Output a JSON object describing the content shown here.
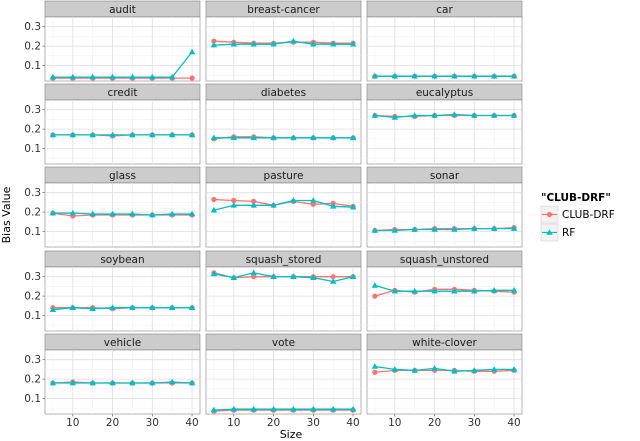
{
  "chart_data": {
    "type": "line",
    "xlabel": "Size",
    "ylabel": "Bias Value",
    "xlim": [
      3,
      42
    ],
    "ylim": [
      0.02,
      0.35
    ],
    "x_ticks": [
      "10",
      "20",
      "30",
      "40"
    ],
    "y_ticks": [
      "0.1",
      "0.2",
      "0.3"
    ],
    "x_tick_values": [
      10,
      20,
      30,
      40
    ],
    "y_tick_values": [
      0.1,
      0.2,
      0.3
    ],
    "grid": true,
    "facet_cols": 3,
    "legend": {
      "title": "\"CLUB-DRF\"",
      "placement": "right",
      "entries": [
        {
          "name": "CLUB-DRF",
          "color": "#F8766D",
          "marker": "circle"
        },
        {
          "name": "RF",
          "color": "#00BFC4",
          "marker": "triangle"
        }
      ]
    },
    "x": [
      5,
      10,
      15,
      20,
      25,
      30,
      35,
      40
    ],
    "panels": [
      {
        "title": "audit",
        "series": [
          {
            "name": "CLUB-DRF",
            "values": [
              0.035,
              0.035,
              0.035,
              0.035,
              0.035,
              0.035,
              0.035,
              0.035
            ]
          },
          {
            "name": "RF",
            "values": [
              0.04,
              0.04,
              0.04,
              0.04,
              0.04,
              0.04,
              0.04,
              0.17
            ]
          }
        ]
      },
      {
        "title": "breast-cancer",
        "series": [
          {
            "name": "CLUB-DRF",
            "values": [
              0.225,
              0.22,
              0.215,
              0.215,
              0.22,
              0.22,
              0.215,
              0.215
            ]
          },
          {
            "name": "RF",
            "values": [
              0.205,
              0.21,
              0.21,
              0.21,
              0.225,
              0.21,
              0.21,
              0.21
            ]
          }
        ]
      },
      {
        "title": "car",
        "series": [
          {
            "name": "CLUB-DRF",
            "values": [
              0.045,
              0.045,
              0.045,
              0.045,
              0.045,
              0.045,
              0.045,
              0.045
            ]
          },
          {
            "name": "RF",
            "values": [
              0.045,
              0.045,
              0.045,
              0.045,
              0.045,
              0.045,
              0.045,
              0.045
            ]
          }
        ]
      },
      {
        "title": "credit",
        "series": [
          {
            "name": "CLUB-DRF",
            "values": [
              0.17,
              0.17,
              0.17,
              0.165,
              0.17,
              0.17,
              0.17,
              0.17
            ]
          },
          {
            "name": "RF",
            "values": [
              0.17,
              0.17,
              0.17,
              0.17,
              0.17,
              0.17,
              0.17,
              0.17
            ]
          }
        ]
      },
      {
        "title": "diabetes",
        "series": [
          {
            "name": "CLUB-DRF",
            "values": [
              0.15,
              0.16,
              0.16,
              0.155,
              0.155,
              0.155,
              0.155,
              0.155
            ]
          },
          {
            "name": "RF",
            "values": [
              0.155,
              0.155,
              0.155,
              0.155,
              0.155,
              0.155,
              0.155,
              0.155
            ]
          }
        ]
      },
      {
        "title": "eucalyptus",
        "series": [
          {
            "name": "CLUB-DRF",
            "values": [
              0.27,
              0.265,
              0.265,
              0.27,
              0.27,
              0.27,
              0.27,
              0.27
            ]
          },
          {
            "name": "RF",
            "values": [
              0.27,
              0.26,
              0.27,
              0.27,
              0.275,
              0.27,
              0.27,
              0.27
            ]
          }
        ]
      },
      {
        "title": "glass",
        "series": [
          {
            "name": "CLUB-DRF",
            "values": [
              0.195,
              0.18,
              0.185,
              0.185,
              0.185,
              0.185,
              0.185,
              0.185
            ]
          },
          {
            "name": "RF",
            "values": [
              0.195,
              0.195,
              0.19,
              0.19,
              0.19,
              0.185,
              0.19,
              0.19
            ]
          }
        ]
      },
      {
        "title": "pasture",
        "series": [
          {
            "name": "CLUB-DRF",
            "values": [
              0.265,
              0.26,
              0.255,
              0.235,
              0.255,
              0.24,
              0.245,
              0.23
            ]
          },
          {
            "name": "RF",
            "values": [
              0.21,
              0.235,
              0.235,
              0.235,
              0.26,
              0.26,
              0.23,
              0.225
            ]
          }
        ]
      },
      {
        "title": "sonar",
        "series": [
          {
            "name": "CLUB-DRF",
            "values": [
              0.105,
              0.11,
              0.11,
              0.115,
              0.115,
              0.115,
              0.115,
              0.12
            ]
          },
          {
            "name": "RF",
            "values": [
              0.105,
              0.105,
              0.11,
              0.11,
              0.11,
              0.115,
              0.115,
              0.115
            ]
          }
        ]
      },
      {
        "title": "soybean",
        "series": [
          {
            "name": "CLUB-DRF",
            "values": [
              0.14,
              0.14,
              0.14,
              0.135,
              0.14,
              0.14,
              0.14,
              0.14
            ]
          },
          {
            "name": "RF",
            "values": [
              0.13,
              0.14,
              0.135,
              0.14,
              0.14,
              0.14,
              0.14,
              0.14
            ]
          }
        ]
      },
      {
        "title": "squash_stored",
        "series": [
          {
            "name": "CLUB-DRF",
            "values": [
              0.32,
              0.295,
              0.3,
              0.3,
              0.3,
              0.3,
              0.3,
              0.3
            ]
          },
          {
            "name": "RF",
            "values": [
              0.315,
              0.295,
              0.32,
              0.3,
              0.3,
              0.295,
              0.275,
              0.3
            ]
          }
        ]
      },
      {
        "title": "squash_unstored",
        "series": [
          {
            "name": "CLUB-DRF",
            "values": [
              0.2,
              0.23,
              0.22,
              0.235,
              0.235,
              0.23,
              0.225,
              0.22
            ]
          },
          {
            "name": "RF",
            "values": [
              0.255,
              0.225,
              0.225,
              0.225,
              0.225,
              0.225,
              0.23,
              0.23
            ]
          }
        ]
      },
      {
        "title": "vehicle",
        "series": [
          {
            "name": "CLUB-DRF",
            "values": [
              0.18,
              0.185,
              0.18,
              0.18,
              0.18,
              0.18,
              0.18,
              0.18
            ]
          },
          {
            "name": "RF",
            "values": [
              0.18,
              0.18,
              0.18,
              0.18,
              0.18,
              0.18,
              0.185,
              0.18
            ]
          }
        ]
      },
      {
        "title": "vote",
        "series": [
          {
            "name": "CLUB-DRF",
            "values": [
              0.035,
              0.04,
              0.04,
              0.04,
              0.04,
              0.04,
              0.04,
              0.04
            ]
          },
          {
            "name": "RF",
            "values": [
              0.04,
              0.045,
              0.045,
              0.045,
              0.045,
              0.045,
              0.045,
              0.045
            ]
          }
        ]
      },
      {
        "title": "white-clover",
        "series": [
          {
            "name": "CLUB-DRF",
            "values": [
              0.235,
              0.245,
              0.245,
              0.245,
              0.245,
              0.24,
              0.24,
              0.245
            ]
          },
          {
            "name": "RF",
            "values": [
              0.265,
              0.25,
              0.245,
              0.255,
              0.24,
              0.245,
              0.25,
              0.25
            ]
          }
        ]
      }
    ]
  }
}
